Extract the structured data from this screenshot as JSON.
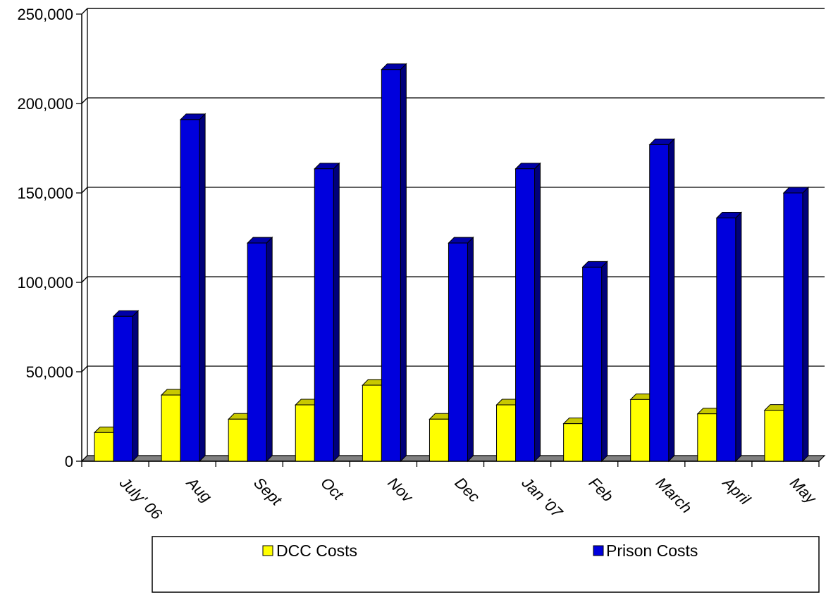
{
  "chart_data": {
    "type": "bar",
    "categories": [
      "July' 06",
      "Aug",
      "Sept",
      "Oct",
      "Nov",
      "Dec",
      "Jan '07",
      "Feb",
      "March",
      "April",
      "May"
    ],
    "series": [
      {
        "name": "DCC Costs",
        "color": "#ffff00",
        "values": [
          16000,
          37000,
          23500,
          31500,
          42500,
          23500,
          31500,
          21000,
          34500,
          26500,
          28500
        ]
      },
      {
        "name": "Prison Costs",
        "color": "#0000dd",
        "values": [
          81000,
          191000,
          122000,
          163500,
          219000,
          122000,
          163500,
          108500,
          177000,
          136000,
          150000
        ]
      }
    ],
    "y_ticks": [
      "0",
      "50,000",
      "100,000",
      "150,000",
      "200,000",
      "250,000"
    ],
    "ylim": [
      0,
      250000
    ],
    "grid": true,
    "legend_position": "bottom"
  }
}
